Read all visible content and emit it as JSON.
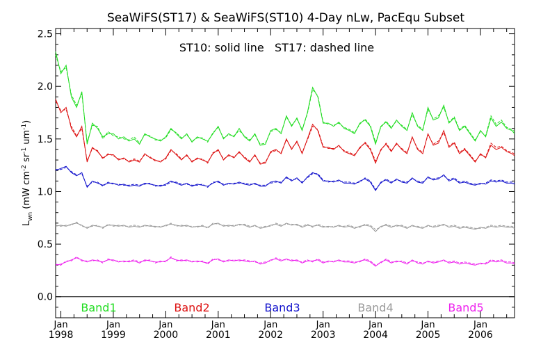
{
  "chart_data": {
    "type": "line",
    "title": "SeaWiFS(ST17) & SeaWiFS(ST10) 4-Day nLw, PacEqu Subset",
    "annotation": "ST10: solid line   ST17: dashed line",
    "ylabel": "L_wn (mW cm^-2 sr^-1 um^-1)",
    "ylabel_main": "L",
    "ylabel_sub": "wn",
    "ylabel_rest": "(mW cm",
    "ylabel_exp1": "-2",
    "ylabel_mid": " sr",
    "ylabel_exp2": "-1",
    "ylabel_mid2": " um",
    "ylabel_exp3": "-1",
    "ylabel_end": ")",
    "xlabel": "",
    "xlim": [
      1997.9,
      2006.65
    ],
    "ylim": [
      -0.2,
      2.55
    ],
    "yticks": [
      "0.0",
      "0.5",
      "1.0",
      "1.5",
      "2.0",
      "2.5"
    ],
    "xticks": [
      {
        "month": "Jan",
        "year": "1998",
        "x": 1998.0
      },
      {
        "month": "Jan",
        "year": "1999",
        "x": 1999.0
      },
      {
        "month": "Jan",
        "year": "2000",
        "x": 2000.0
      },
      {
        "month": "Jan",
        "year": "2001",
        "x": 2001.0
      },
      {
        "month": "Jan",
        "year": "2002",
        "x": 2002.0
      },
      {
        "month": "Jan",
        "year": "2003",
        "x": 2003.0
      },
      {
        "month": "Jan",
        "year": "2004",
        "x": 2004.0
      },
      {
        "month": "Jan",
        "year": "2005",
        "x": 2005.0
      },
      {
        "month": "Jan",
        "year": "2006",
        "x": 2006.0
      }
    ],
    "x": [
      1997.9,
      1998.0,
      1998.1,
      1998.2,
      1998.3,
      1998.4,
      1998.5,
      1998.6,
      1998.7,
      1998.8,
      1998.9,
      1999.0,
      1999.1,
      1999.2,
      1999.3,
      1999.4,
      1999.5,
      1999.6,
      1999.7,
      1999.8,
      1999.9,
      2000.0,
      2000.1,
      2000.2,
      2000.3,
      2000.4,
      2000.5,
      2000.6,
      2000.7,
      2000.8,
      2000.9,
      2001.0,
      2001.1,
      2001.2,
      2001.3,
      2001.4,
      2001.5,
      2001.6,
      2001.7,
      2001.8,
      2001.9,
      2002.0,
      2002.1,
      2002.2,
      2002.3,
      2002.4,
      2002.5,
      2002.6,
      2002.7,
      2002.8,
      2002.9,
      2003.0,
      2003.1,
      2003.2,
      2003.3,
      2003.4,
      2003.5,
      2003.6,
      2003.7,
      2003.8,
      2003.9,
      2004.0,
      2004.1,
      2004.2,
      2004.3,
      2004.4,
      2004.5,
      2004.6,
      2004.7,
      2004.8,
      2004.9,
      2005.0,
      2005.1,
      2005.2,
      2005.3,
      2005.4,
      2005.5,
      2005.6,
      2005.7,
      2005.8,
      2005.9,
      2006.0,
      2006.1,
      2006.2,
      2006.3,
      2006.4,
      2006.5,
      2006.6,
      2006.65
    ],
    "series": [
      {
        "name": "Band1",
        "color": "#22dd22",
        "values": [
          2.33,
          2.12,
          2.2,
          1.9,
          1.8,
          1.95,
          1.45,
          1.65,
          1.6,
          1.52,
          1.55,
          1.55,
          1.5,
          1.52,
          1.48,
          1.5,
          1.45,
          1.55,
          1.52,
          1.5,
          1.48,
          1.52,
          1.6,
          1.55,
          1.5,
          1.55,
          1.47,
          1.52,
          1.5,
          1.48,
          1.55,
          1.62,
          1.5,
          1.55,
          1.52,
          1.6,
          1.52,
          1.48,
          1.55,
          1.44,
          1.45,
          1.58,
          1.6,
          1.55,
          1.72,
          1.62,
          1.7,
          1.58,
          1.75,
          1.99,
          1.9,
          1.65,
          1.65,
          1.62,
          1.66,
          1.6,
          1.58,
          1.55,
          1.65,
          1.68,
          1.62,
          1.45,
          1.62,
          1.66,
          1.6,
          1.68,
          1.62,
          1.58,
          1.75,
          1.62,
          1.58,
          1.8,
          1.68,
          1.7,
          1.82,
          1.65,
          1.7,
          1.58,
          1.62,
          1.55,
          1.48,
          1.58,
          1.52,
          1.7,
          1.62,
          1.66,
          1.6,
          1.58,
          1.55
        ],
        "values2": [
          2.3,
          2.14,
          2.18,
          1.92,
          1.82,
          1.93,
          1.47,
          1.63,
          1.62,
          1.5,
          1.57,
          1.53,
          1.52,
          1.5,
          1.49,
          1.52,
          1.46,
          1.54,
          1.53,
          1.49,
          1.49,
          1.51,
          1.59,
          1.56,
          1.51,
          1.54,
          1.48,
          1.51,
          1.51,
          1.47,
          1.56,
          1.61,
          1.51,
          1.54,
          1.53,
          1.58,
          1.53,
          1.49,
          1.54,
          1.45,
          1.46,
          1.57,
          1.59,
          1.56,
          1.71,
          1.63,
          1.69,
          1.59,
          1.74,
          1.97,
          1.91,
          1.66,
          1.64,
          1.63,
          1.65,
          1.61,
          1.59,
          1.56,
          1.64,
          1.69,
          1.63,
          1.47,
          1.61,
          1.67,
          1.61,
          1.67,
          1.63,
          1.59,
          1.73,
          1.63,
          1.59,
          1.78,
          1.69,
          1.72,
          1.8,
          1.66,
          1.71,
          1.59,
          1.63,
          1.56,
          1.49,
          1.57,
          1.53,
          1.72,
          1.64,
          1.68,
          1.61,
          1.59,
          1.57
        ]
      },
      {
        "name": "Band2",
        "color": "#dd1111",
        "values": [
          1.88,
          1.75,
          1.8,
          1.6,
          1.52,
          1.62,
          1.28,
          1.42,
          1.38,
          1.32,
          1.35,
          1.35,
          1.3,
          1.32,
          1.28,
          1.3,
          1.28,
          1.36,
          1.32,
          1.3,
          1.28,
          1.32,
          1.4,
          1.35,
          1.3,
          1.35,
          1.28,
          1.32,
          1.3,
          1.28,
          1.36,
          1.4,
          1.3,
          1.35,
          1.32,
          1.38,
          1.32,
          1.28,
          1.35,
          1.26,
          1.27,
          1.38,
          1.4,
          1.36,
          1.5,
          1.4,
          1.48,
          1.36,
          1.5,
          1.64,
          1.58,
          1.42,
          1.42,
          1.4,
          1.44,
          1.38,
          1.36,
          1.34,
          1.42,
          1.46,
          1.4,
          1.27,
          1.4,
          1.45,
          1.38,
          1.46,
          1.4,
          1.36,
          1.52,
          1.4,
          1.36,
          1.55,
          1.44,
          1.46,
          1.58,
          1.42,
          1.46,
          1.36,
          1.4,
          1.34,
          1.28,
          1.36,
          1.32,
          1.44,
          1.4,
          1.42,
          1.38,
          1.36,
          1.34
        ],
        "values2": [
          1.86,
          1.77,
          1.78,
          1.62,
          1.53,
          1.6,
          1.29,
          1.41,
          1.39,
          1.31,
          1.36,
          1.34,
          1.31,
          1.31,
          1.29,
          1.31,
          1.29,
          1.35,
          1.33,
          1.29,
          1.29,
          1.31,
          1.39,
          1.36,
          1.31,
          1.34,
          1.29,
          1.31,
          1.31,
          1.27,
          1.37,
          1.39,
          1.31,
          1.34,
          1.33,
          1.37,
          1.33,
          1.29,
          1.34,
          1.27,
          1.28,
          1.37,
          1.39,
          1.37,
          1.49,
          1.41,
          1.47,
          1.37,
          1.49,
          1.62,
          1.59,
          1.43,
          1.41,
          1.41,
          1.43,
          1.39,
          1.37,
          1.35,
          1.41,
          1.47,
          1.41,
          1.29,
          1.39,
          1.46,
          1.39,
          1.45,
          1.41,
          1.37,
          1.51,
          1.41,
          1.37,
          1.54,
          1.45,
          1.48,
          1.56,
          1.43,
          1.47,
          1.37,
          1.41,
          1.35,
          1.29,
          1.35,
          1.33,
          1.46,
          1.42,
          1.43,
          1.39,
          1.37,
          1.36
        ]
      },
      {
        "name": "Band3",
        "color": "#1111cc",
        "values": [
          1.2,
          1.22,
          1.24,
          1.18,
          1.15,
          1.18,
          1.04,
          1.1,
          1.08,
          1.06,
          1.08,
          1.08,
          1.06,
          1.07,
          1.05,
          1.06,
          1.05,
          1.08,
          1.07,
          1.06,
          1.05,
          1.07,
          1.1,
          1.08,
          1.06,
          1.08,
          1.05,
          1.07,
          1.06,
          1.05,
          1.08,
          1.1,
          1.06,
          1.08,
          1.07,
          1.09,
          1.07,
          1.06,
          1.08,
          1.05,
          1.05,
          1.09,
          1.1,
          1.08,
          1.14,
          1.1,
          1.13,
          1.08,
          1.14,
          1.18,
          1.16,
          1.1,
          1.1,
          1.09,
          1.11,
          1.08,
          1.08,
          1.07,
          1.1,
          1.12,
          1.09,
          1.01,
          1.09,
          1.11,
          1.08,
          1.12,
          1.09,
          1.08,
          1.13,
          1.09,
          1.08,
          1.14,
          1.11,
          1.12,
          1.16,
          1.1,
          1.12,
          1.08,
          1.09,
          1.07,
          1.06,
          1.08,
          1.07,
          1.1,
          1.09,
          1.1,
          1.08,
          1.08,
          1.07
        ],
        "values2": [
          1.21,
          1.21,
          1.23,
          1.19,
          1.16,
          1.17,
          1.05,
          1.09,
          1.09,
          1.05,
          1.09,
          1.07,
          1.07,
          1.06,
          1.06,
          1.07,
          1.06,
          1.07,
          1.08,
          1.05,
          1.06,
          1.06,
          1.09,
          1.09,
          1.07,
          1.07,
          1.06,
          1.06,
          1.07,
          1.04,
          1.09,
          1.09,
          1.07,
          1.07,
          1.08,
          1.08,
          1.08,
          1.07,
          1.07,
          1.06,
          1.06,
          1.08,
          1.09,
          1.09,
          1.13,
          1.11,
          1.12,
          1.09,
          1.13,
          1.17,
          1.17,
          1.11,
          1.09,
          1.1,
          1.1,
          1.09,
          1.09,
          1.08,
          1.09,
          1.13,
          1.1,
          1.02,
          1.08,
          1.12,
          1.09,
          1.11,
          1.1,
          1.09,
          1.12,
          1.1,
          1.09,
          1.13,
          1.12,
          1.13,
          1.15,
          1.11,
          1.13,
          1.09,
          1.1,
          1.08,
          1.07,
          1.07,
          1.08,
          1.11,
          1.1,
          1.11,
          1.09,
          1.09,
          1.08
        ]
      },
      {
        "name": "Band4",
        "color": "#999999",
        "values": [
          0.67,
          0.68,
          0.67,
          0.69,
          0.7,
          0.68,
          0.65,
          0.68,
          0.67,
          0.66,
          0.68,
          0.68,
          0.67,
          0.68,
          0.66,
          0.67,
          0.66,
          0.68,
          0.67,
          0.67,
          0.66,
          0.68,
          0.69,
          0.68,
          0.67,
          0.68,
          0.66,
          0.67,
          0.67,
          0.66,
          0.69,
          0.7,
          0.67,
          0.68,
          0.67,
          0.69,
          0.68,
          0.66,
          0.68,
          0.65,
          0.66,
          0.68,
          0.69,
          0.67,
          0.7,
          0.68,
          0.69,
          0.66,
          0.68,
          0.67,
          0.68,
          0.66,
          0.67,
          0.66,
          0.68,
          0.66,
          0.67,
          0.65,
          0.67,
          0.68,
          0.67,
          0.62,
          0.67,
          0.68,
          0.66,
          0.68,
          0.67,
          0.65,
          0.68,
          0.66,
          0.65,
          0.68,
          0.66,
          0.67,
          0.69,
          0.66,
          0.67,
          0.65,
          0.66,
          0.65,
          0.64,
          0.66,
          0.65,
          0.67,
          0.66,
          0.67,
          0.66,
          0.66,
          0.65
        ],
        "values2": [
          0.68,
          0.67,
          0.68,
          0.68,
          0.71,
          0.67,
          0.66,
          0.67,
          0.68,
          0.65,
          0.69,
          0.67,
          0.68,
          0.67,
          0.67,
          0.68,
          0.67,
          0.67,
          0.68,
          0.66,
          0.67,
          0.67,
          0.7,
          0.67,
          0.68,
          0.67,
          0.67,
          0.66,
          0.68,
          0.65,
          0.7,
          0.69,
          0.68,
          0.67,
          0.68,
          0.68,
          0.69,
          0.67,
          0.67,
          0.66,
          0.67,
          0.67,
          0.7,
          0.68,
          0.69,
          0.69,
          0.68,
          0.67,
          0.69,
          0.66,
          0.69,
          0.67,
          0.66,
          0.67,
          0.67,
          0.67,
          0.68,
          0.66,
          0.66,
          0.69,
          0.68,
          0.64,
          0.66,
          0.69,
          0.67,
          0.67,
          0.68,
          0.66,
          0.67,
          0.67,
          0.66,
          0.67,
          0.67,
          0.68,
          0.68,
          0.67,
          0.68,
          0.66,
          0.67,
          0.66,
          0.65,
          0.65,
          0.66,
          0.68,
          0.67,
          0.68,
          0.67,
          0.67,
          0.66
        ]
      },
      {
        "name": "Band5",
        "color": "#ee22ee",
        "values": [
          0.3,
          0.31,
          0.33,
          0.35,
          0.37,
          0.35,
          0.33,
          0.35,
          0.34,
          0.33,
          0.35,
          0.35,
          0.33,
          0.34,
          0.33,
          0.34,
          0.32,
          0.35,
          0.34,
          0.33,
          0.33,
          0.34,
          0.37,
          0.35,
          0.34,
          0.35,
          0.33,
          0.34,
          0.33,
          0.32,
          0.35,
          0.36,
          0.33,
          0.35,
          0.34,
          0.35,
          0.34,
          0.33,
          0.34,
          0.31,
          0.32,
          0.35,
          0.36,
          0.34,
          0.36,
          0.34,
          0.35,
          0.32,
          0.34,
          0.34,
          0.35,
          0.32,
          0.34,
          0.33,
          0.35,
          0.33,
          0.33,
          0.32,
          0.34,
          0.35,
          0.33,
          0.29,
          0.33,
          0.35,
          0.32,
          0.34,
          0.33,
          0.31,
          0.35,
          0.32,
          0.31,
          0.34,
          0.32,
          0.33,
          0.35,
          0.32,
          0.33,
          0.31,
          0.32,
          0.31,
          0.3,
          0.32,
          0.31,
          0.34,
          0.33,
          0.34,
          0.32,
          0.32,
          0.31
        ],
        "values2": [
          0.31,
          0.3,
          0.34,
          0.34,
          0.38,
          0.34,
          0.34,
          0.34,
          0.35,
          0.32,
          0.36,
          0.34,
          0.34,
          0.33,
          0.34,
          0.35,
          0.33,
          0.34,
          0.35,
          0.32,
          0.34,
          0.33,
          0.38,
          0.34,
          0.35,
          0.34,
          0.34,
          0.33,
          0.34,
          0.31,
          0.36,
          0.35,
          0.34,
          0.34,
          0.35,
          0.34,
          0.35,
          0.34,
          0.33,
          0.32,
          0.33,
          0.34,
          0.37,
          0.35,
          0.35,
          0.35,
          0.34,
          0.33,
          0.35,
          0.33,
          0.36,
          0.33,
          0.33,
          0.34,
          0.34,
          0.34,
          0.34,
          0.33,
          0.33,
          0.36,
          0.34,
          0.3,
          0.32,
          0.36,
          0.33,
          0.33,
          0.34,
          0.32,
          0.34,
          0.33,
          0.32,
          0.33,
          0.33,
          0.34,
          0.34,
          0.33,
          0.34,
          0.32,
          0.33,
          0.32,
          0.31,
          0.31,
          0.32,
          0.35,
          0.34,
          0.35,
          0.33,
          0.33,
          0.32
        ]
      }
    ],
    "legend": [
      "Band1",
      "Band2",
      "Band3",
      "Band4",
      "Band5"
    ],
    "legend_placement": "bottom"
  }
}
